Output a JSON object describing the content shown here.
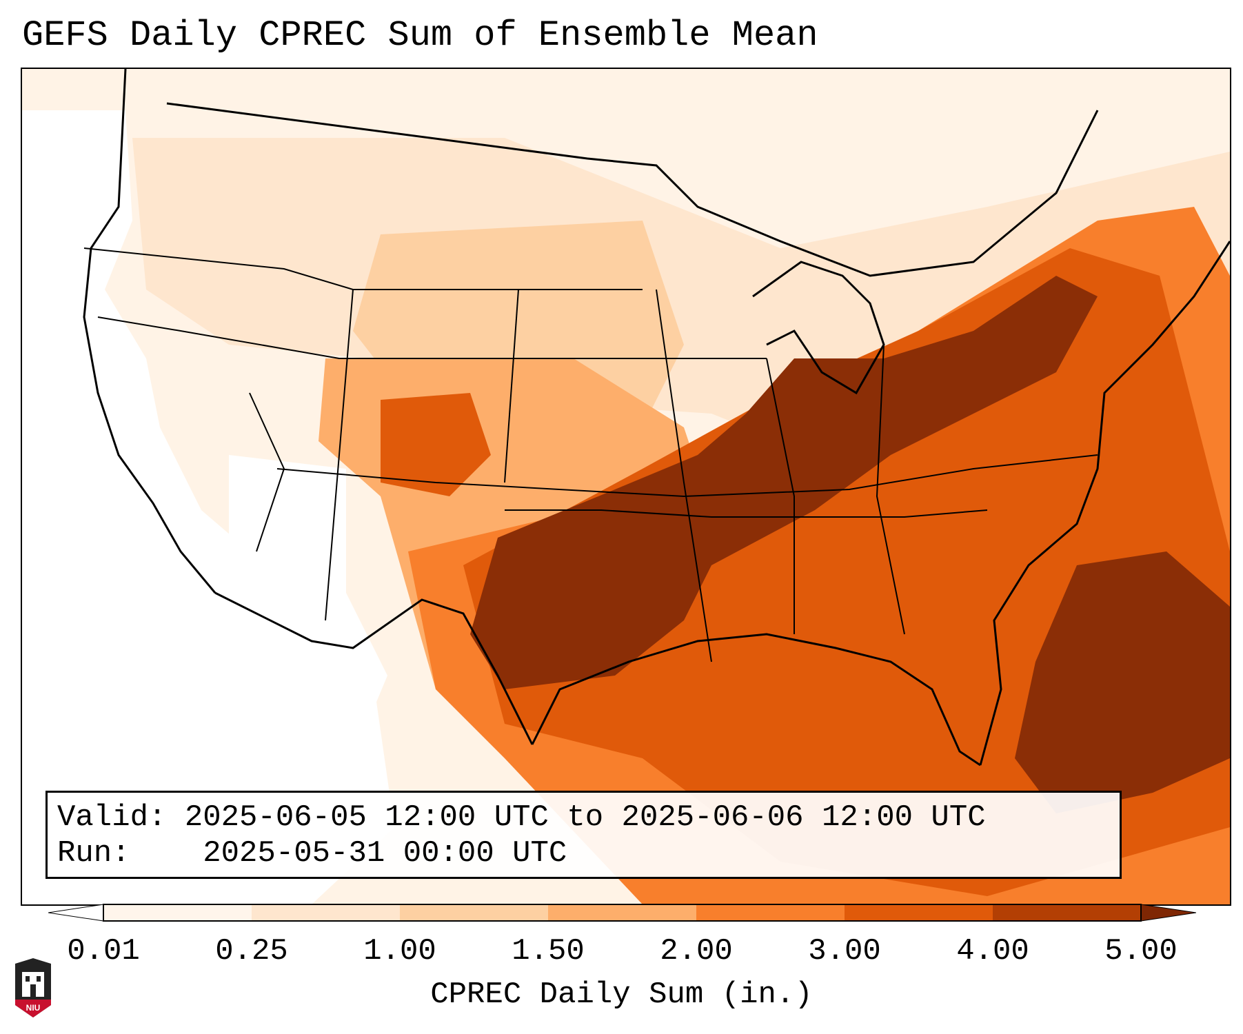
{
  "title": "GEFS Daily CPREC Sum of Ensemble Mean",
  "info": {
    "valid_label": "Valid:",
    "valid_value": "2025-06-05 12:00 UTC to 2025-06-06 12:00 UTC",
    "run_label": "Run:",
    "run_value": "2025-05-31 00:00 UTC"
  },
  "colorbar": {
    "label": "CPREC Daily Sum (in.)",
    "ticks": [
      "0.01",
      "0.25",
      "1.00",
      "1.50",
      "2.00",
      "3.00",
      "4.00",
      "5.00"
    ],
    "colors": [
      "#fff5eb",
      "#fee6ce",
      "#fdd0a2",
      "#fdae6b",
      "#f87f2c",
      "#e05a0a",
      "#b33f04",
      "#8b2e06"
    ],
    "under_color": "#ffffff",
    "over_color": "#7f2704"
  },
  "logo": {
    "text": "NIU",
    "colors": {
      "shield": "#c8102e",
      "body": "#222222"
    }
  },
  "map": {
    "region": "Contiguous United States",
    "heaviest_areas": [
      "Oklahoma",
      "Texas",
      "Arkansas",
      "Tennessee",
      "Kentucky",
      "Ohio",
      "Pennsylvania",
      "Atlantic coast"
    ]
  }
}
